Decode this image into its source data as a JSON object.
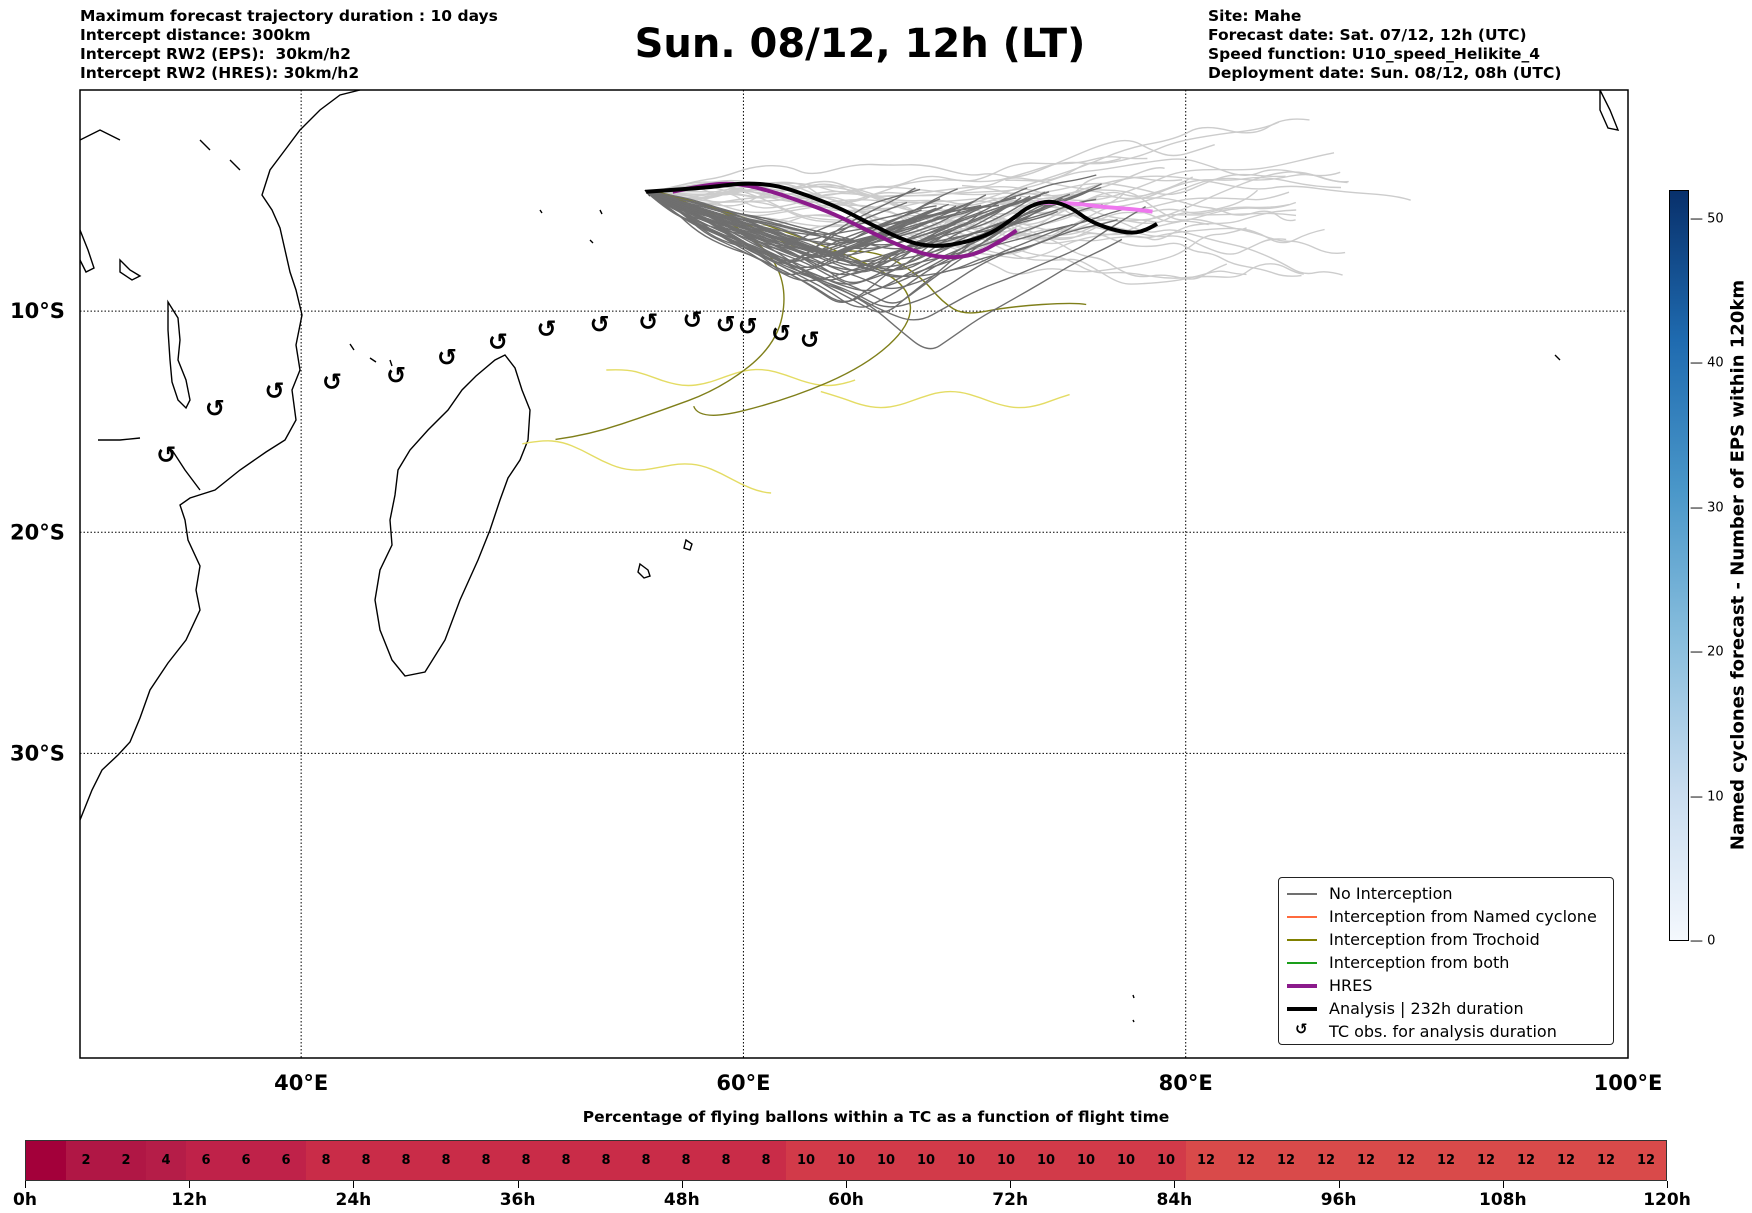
{
  "header": {
    "left_lines": [
      "Maximum forecast trajectory duration : 10 days",
      "Intercept distance: 300km",
      "Intercept RW2 (EPS):  30km/h2",
      "Intercept RW2 (HRES): 30km/h2"
    ],
    "title": "Sun. 08/12, 12h (LT)",
    "right_lines": [
      "Site: Mahe",
      "Forecast date: Sat. 07/12, 12h (UTC)",
      "Speed function: U10_speed_Helikite_4",
      "Deployment date: Sun. 08/12, 08h (UTC)"
    ]
  },
  "map": {
    "extent": {
      "lon_min": 30,
      "lon_max": 100,
      "lat_min": -40.5,
      "lat_max": 0
    },
    "lat_lines": [
      -10,
      -20,
      -30
    ],
    "lat_labels": [
      "10°S",
      "20°S",
      "30°S"
    ],
    "lon_lines": [
      40,
      60,
      80
    ],
    "lon_labels": [
      "40°E",
      "60°E",
      "80°E",
      "100°E"
    ],
    "lon_label_values": [
      40,
      60,
      80,
      100
    ],
    "tc_obs_symbol": "↺",
    "tc_obs_points": [
      [
        33.9,
        -16.5
      ],
      [
        36.1,
        -14.4
      ],
      [
        38.8,
        -13.6
      ],
      [
        41.4,
        -13.2
      ],
      [
        44.3,
        -12.9
      ],
      [
        46.6,
        -12.1
      ],
      [
        48.9,
        -11.4
      ],
      [
        51.1,
        -10.8
      ],
      [
        53.5,
        -10.6
      ],
      [
        55.7,
        -10.5
      ],
      [
        57.7,
        -10.4
      ],
      [
        59.2,
        -10.6
      ],
      [
        60.2,
        -10.7
      ],
      [
        61.7,
        -11.0
      ],
      [
        63.0,
        -11.3
      ]
    ],
    "hres_track": [
      [
        56.8,
        -4.6
      ],
      [
        58.2,
        -4.3
      ],
      [
        59.6,
        -4.2
      ],
      [
        61.0,
        -4.5
      ],
      [
        62.5,
        -5.0
      ],
      [
        64.1,
        -5.6
      ],
      [
        65.7,
        -6.4
      ],
      [
        67.4,
        -7.2
      ],
      [
        68.9,
        -7.6
      ],
      [
        70.4,
        -7.5
      ],
      [
        71.7,
        -6.8
      ],
      [
        73.0,
        -5.9
      ]
    ],
    "hres_track_late": [
      [
        73.3,
        -5.1
      ],
      [
        74.8,
        -5.1
      ],
      [
        76.3,
        -5.3
      ],
      [
        77.8,
        -5.4
      ],
      [
        79.2,
        -5.6
      ]
    ],
    "analysis_track": [
      [
        55.6,
        -4.6
      ],
      [
        57.0,
        -4.5
      ],
      [
        58.5,
        -4.4
      ],
      [
        60.0,
        -4.2
      ],
      [
        61.5,
        -4.3
      ],
      [
        63.0,
        -4.8
      ],
      [
        64.5,
        -5.4
      ],
      [
        66.0,
        -6.2
      ],
      [
        67.5,
        -6.9
      ],
      [
        68.7,
        -7.1
      ],
      [
        70.0,
        -6.9
      ],
      [
        71.2,
        -6.5
      ],
      [
        72.2,
        -5.8
      ],
      [
        73.0,
        -5.2
      ],
      [
        73.9,
        -5.0
      ],
      [
        74.8,
        -5.3
      ],
      [
        75.6,
        -5.9
      ],
      [
        76.6,
        -6.3
      ],
      [
        77.6,
        -6.5
      ],
      [
        78.3,
        -6.3
      ],
      [
        79.1,
        -5.8
      ]
    ],
    "tracks_no_interception_count": 50,
    "tracks_no_interception_color": "#707070",
    "tracks_light_color": "#cccccc",
    "tracks_trochoid_color": "#7f7f1a",
    "tracks_yellow_color": "#e4dc64"
  },
  "legend": {
    "items": [
      {
        "label": "No Interception",
        "color": "#707070",
        "kind": "line"
      },
      {
        "label": "Interception from Named cyclone",
        "color": "#ff6a3d",
        "kind": "line"
      },
      {
        "label": "Interception from Trochoid",
        "color": "#808000",
        "kind": "line"
      },
      {
        "label": "Interception from both",
        "color": "#1a9e1a",
        "kind": "line"
      },
      {
        "label": "HRES",
        "color": "#8b1a8b",
        "kind": "thick"
      },
      {
        "label": "Analysis | 232h duration",
        "color": "#000000",
        "kind": "thick"
      },
      {
        "label": "TC obs. for analysis duration",
        "color": "#000000",
        "kind": "glyph",
        "glyph": "↺"
      }
    ]
  },
  "percentage_bar": {
    "title": "Percentage of flying ballons within a TC as a function of flight time",
    "cells": [
      "",
      "2",
      "2",
      "4",
      "6",
      "6",
      "6",
      "8",
      "8",
      "8",
      "8",
      "8",
      "8",
      "8",
      "8",
      "8",
      "8",
      "8",
      "8",
      "10",
      "10",
      "10",
      "10",
      "10",
      "10",
      "10",
      "10",
      "10",
      "10",
      "12",
      "12",
      "12",
      "12",
      "12",
      "12",
      "12",
      "12",
      "12",
      "12",
      "12",
      "12"
    ],
    "tick_labels": [
      "0h",
      "12h",
      "24h",
      "36h",
      "48h",
      "60h",
      "72h",
      "84h",
      "96h",
      "108h",
      "120h"
    ],
    "colors": {
      "0": "#a3003a",
      "2": "#b01745",
      "4": "#b51d48",
      "6": "#bf2249",
      "8": "#c92c48",
      "10": "#d23a49",
      "12": "#d94a4a"
    }
  },
  "eps_colorbar": {
    "title": "Named cyclones forecast - Number of EPS within 120km",
    "ticks": [
      0,
      10,
      20,
      30,
      40,
      50
    ],
    "max": 52
  }
}
